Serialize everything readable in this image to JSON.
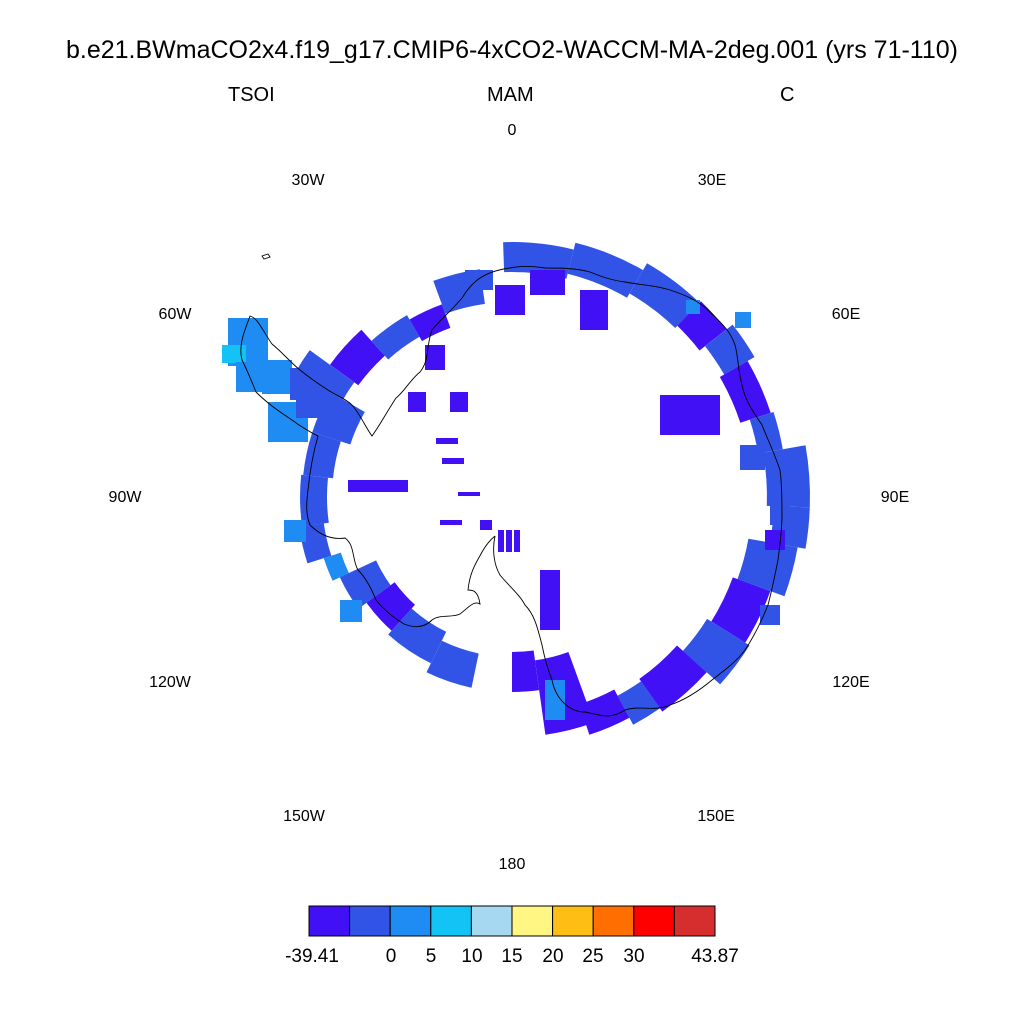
{
  "header": {
    "title": "b.e21.BWmaCO2x4.f19_g17.CMIP6-4xCO2-WACCM-MA-2deg.001 (yrs 71-110)",
    "left": "TSOI",
    "center": "MAM",
    "right": "C"
  },
  "map": {
    "projection": "south-polar-stereographic",
    "region": "Antarctica",
    "coastline_color": "#000000",
    "longitude_labels": [
      "0",
      "30E",
      "60E",
      "90E",
      "120E",
      "150E",
      "180",
      "150W",
      "120W",
      "90W",
      "60W",
      "30W"
    ]
  },
  "colorbar": {
    "colors": [
      "#4110f5",
      "#3154e6",
      "#1e8cf2",
      "#14c3f5",
      "#a6d8f2",
      "#fff684",
      "#ffbe14",
      "#ff6e00",
      "#ff0000",
      "#d62e2e"
    ],
    "labels": [
      "-39.41",
      "0",
      "5",
      "10",
      "15",
      "20",
      "25",
      "30",
      "43.87"
    ]
  }
}
